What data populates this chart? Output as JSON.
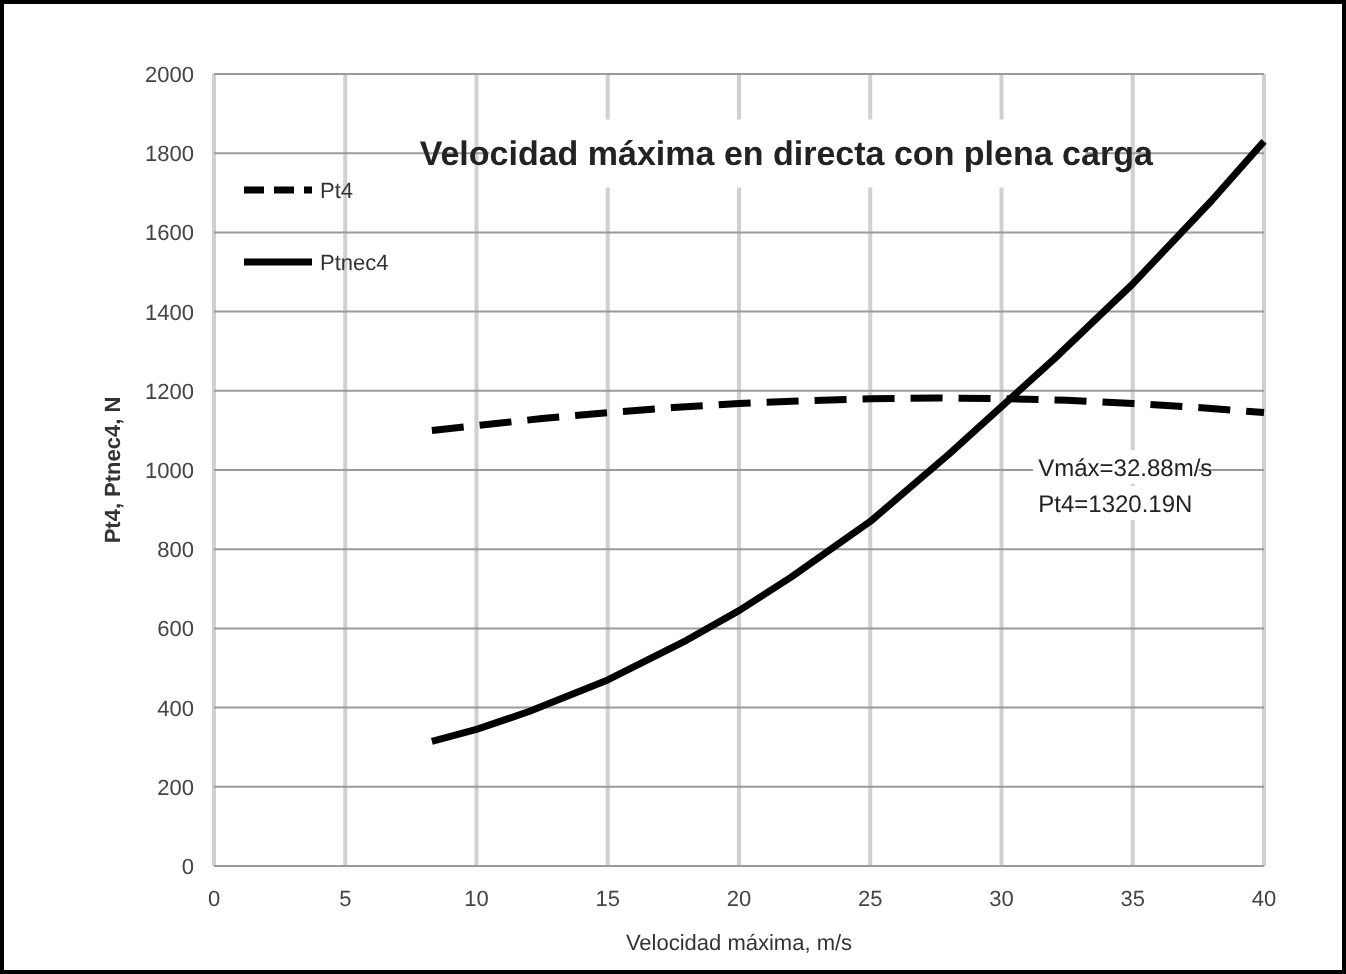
{
  "chart_data": {
    "type": "line",
    "title": "Velocidad máxima en directa con plena carga",
    "xlabel": "Velocidad máxima, m/s",
    "ylabel": "Pt4, Ptnec4, N",
    "xlim": [
      0,
      40
    ],
    "xticks": [
      0,
      5,
      10,
      15,
      20,
      25,
      30,
      35,
      40
    ],
    "ylim": [
      0,
      2000
    ],
    "yticks": [
      0,
      200,
      400,
      600,
      800,
      1000,
      1200,
      1400,
      1600,
      1800,
      2000
    ],
    "grid": true,
    "legend": "top left",
    "series": [
      {
        "name": "Pt4",
        "color": "#000000",
        "line_style": "dashed",
        "x": [
          8.3,
          10,
          12.5,
          15,
          17.5,
          20,
          22.5,
          25,
          27.5,
          30,
          32.5,
          35,
          37.5,
          40
        ],
        "values": [
          1100,
          1112,
          1130,
          1145,
          1158,
          1168,
          1175,
          1180,
          1182,
          1180,
          1176,
          1168,
          1158,
          1145
        ]
      },
      {
        "name": "Ptnec4",
        "color": "#000000",
        "line_style": "solid",
        "x": [
          8.3,
          10,
          12,
          15,
          18,
          20,
          22,
          25,
          28,
          30,
          32,
          35,
          38,
          40
        ],
        "values": [
          315,
          345,
          390,
          470,
          570,
          645,
          730,
          870,
          1040,
          1160,
          1280,
          1470,
          1680,
          1830
        ]
      }
    ],
    "annotations": [
      "Vmáx=32.88m/s",
      "Pt4=1320.19N"
    ]
  }
}
